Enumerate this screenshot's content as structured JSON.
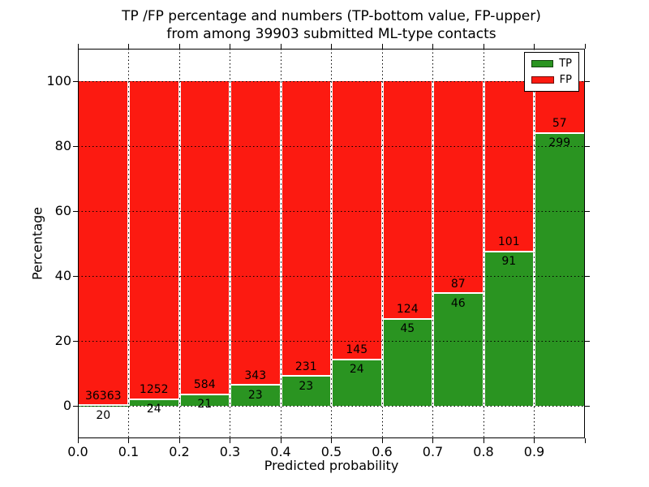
{
  "title": {
    "line1": "TP /FP percentage and numbers (TP-bottom value, FP-upper)",
    "line2": "from among 39903 submitted ML-type contacts"
  },
  "axes": {
    "xlabel": "Predicted probability",
    "ylabel": "Percentage",
    "x_tick_labels": [
      "0.0",
      "0.1",
      "0.2",
      "0.3",
      "0.4",
      "0.5",
      "0.6",
      "0.7",
      "0.8",
      "0.9"
    ],
    "y_tick_labels": [
      "0",
      "20",
      "40",
      "60",
      "80",
      "100"
    ]
  },
  "legend": {
    "entries": [
      {
        "label": "TP",
        "color": "#2a9421"
      },
      {
        "label": "FP",
        "color": "#fc1a11"
      }
    ]
  },
  "chart_data": {
    "type": "bar",
    "subtype": "stacked-100-percent",
    "title": "TP /FP percentage and numbers (TP-bottom value, FP-upper) from among 39903 submitted ML-type contacts",
    "xlabel": "Predicted probability",
    "ylabel": "Percentage",
    "total_contacts": 39903,
    "categories": [
      "0.0-0.1",
      "0.1-0.2",
      "0.2-0.3",
      "0.3-0.4",
      "0.4-0.5",
      "0.5-0.6",
      "0.6-0.7",
      "0.7-0.8",
      "0.8-0.9",
      "0.9-1.0"
    ],
    "bin_edges": [
      0.0,
      0.1,
      0.2,
      0.3,
      0.4,
      0.5,
      0.6,
      0.7,
      0.8,
      0.9,
      1.0
    ],
    "series": [
      {
        "name": "TP",
        "color": "#2a9421",
        "counts": [
          20,
          24,
          21,
          23,
          23,
          24,
          45,
          46,
          91,
          299
        ]
      },
      {
        "name": "FP",
        "color": "#fc1a11",
        "counts": [
          36363,
          1252,
          584,
          343,
          231,
          145,
          124,
          87,
          101,
          57
        ]
      }
    ],
    "tp_percent": [
      0.05,
      1.88,
      3.47,
      6.28,
      9.06,
      14.2,
      26.63,
      34.59,
      47.4,
      83.99
    ],
    "xlim": [
      0.0,
      1.0
    ],
    "ylim": [
      -10,
      110
    ],
    "x_ticks": [
      0.0,
      0.1,
      0.2,
      0.3,
      0.4,
      0.5,
      0.6,
      0.7,
      0.8,
      0.9
    ],
    "y_ticks": [
      0,
      20,
      40,
      60,
      80,
      100
    ],
    "grid": true,
    "grid_style": "dotted",
    "legend_position": "upper right"
  }
}
